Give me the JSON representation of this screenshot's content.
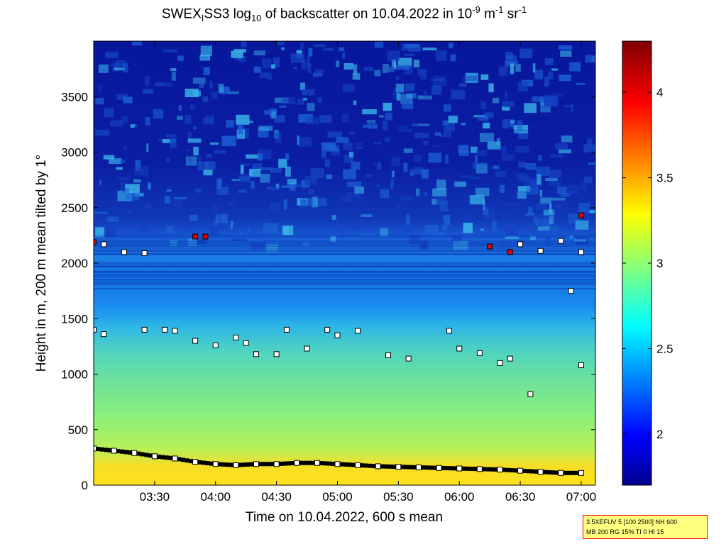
{
  "title": {
    "prefix": "SWEX",
    "sub1": "I",
    "mid": "SS3 log",
    "sub2": "10",
    "after": " of backscatter on 10.04.2022 in 10",
    "sup1": "-9",
    "unit1": " m",
    "sup2": "-1",
    "unit2": " sr",
    "sup3": "-1"
  },
  "info_box": {
    "line1": "3.5XEFUV 5 [100 2500] NH 600",
    "line2": "MB 200 RG 15% TI 0 HI 15"
  },
  "chart_data": {
    "type": "heatmap",
    "title": "SWEX_I SS3 log10 of backscatter on 10.04.2022 in 10^-9 m^-1 sr^-1",
    "xlabel": "Time on 10.04.2022, 600 s mean",
    "ylabel": "Height in m, 200 m mean tilted by 1°",
    "xlim": [
      "03:00",
      "07:07"
    ],
    "ylim": [
      0,
      4000
    ],
    "x_ticks": [
      "03:30",
      "04:00",
      "04:30",
      "05:00",
      "05:30",
      "06:00",
      "06:30",
      "07:00"
    ],
    "y_ticks": [
      0,
      500,
      1000,
      1500,
      2000,
      2500,
      3000,
      3500
    ],
    "colorbar": {
      "colormap": "jet",
      "range": [
        1.7,
        4.3
      ],
      "ticks": [
        2,
        2.5,
        3,
        3.5,
        4
      ]
    },
    "field_description_colors": {
      "high_altitude": "#0a1aa0",
      "boundary_layer_top": "#1e78e6",
      "mid_layer": "#4ad4c8",
      "surface": "#ffd21e"
    },
    "markers_legend": [
      {
        "name": "white squares",
        "color": "#ffffff"
      },
      {
        "name": "black squares",
        "color": "#000000"
      },
      {
        "name": "red squares",
        "color": "#e00000"
      },
      {
        "name": "cyan squares",
        "color": "#40e0f0"
      }
    ],
    "surface_layer_points": [
      {
        "t": "03:00",
        "h": 330
      },
      {
        "t": "03:10",
        "h": 310
      },
      {
        "t": "03:20",
        "h": 290
      },
      {
        "t": "03:30",
        "h": 260
      },
      {
        "t": "03:40",
        "h": 240
      },
      {
        "t": "03:50",
        "h": 210
      },
      {
        "t": "04:00",
        "h": 190
      },
      {
        "t": "04:10",
        "h": 180
      },
      {
        "t": "04:20",
        "h": 190
      },
      {
        "t": "04:30",
        "h": 190
      },
      {
        "t": "04:40",
        "h": 200
      },
      {
        "t": "04:50",
        "h": 200
      },
      {
        "t": "05:00",
        "h": 190
      },
      {
        "t": "05:10",
        "h": 180
      },
      {
        "t": "05:20",
        "h": 170
      },
      {
        "t": "05:30",
        "h": 165
      },
      {
        "t": "05:40",
        "h": 160
      },
      {
        "t": "05:50",
        "h": 155
      },
      {
        "t": "06:00",
        "h": 150
      },
      {
        "t": "06:10",
        "h": 145
      },
      {
        "t": "06:20",
        "h": 140
      },
      {
        "t": "06:30",
        "h": 130
      },
      {
        "t": "06:40",
        "h": 120
      },
      {
        "t": "06:50",
        "h": 110
      },
      {
        "t": "07:00",
        "h": 110
      }
    ],
    "mid_layer_points": [
      {
        "t": "03:00",
        "h": 1400
      },
      {
        "t": "03:05",
        "h": 1360
      },
      {
        "t": "03:25",
        "h": 1400
      },
      {
        "t": "03:35",
        "h": 1400
      },
      {
        "t": "03:40",
        "h": 1390
      },
      {
        "t": "03:50",
        "h": 1300
      },
      {
        "t": "04:00",
        "h": 1260
      },
      {
        "t": "04:10",
        "h": 1330
      },
      {
        "t": "04:15",
        "h": 1280
      },
      {
        "t": "04:20",
        "h": 1180
      },
      {
        "t": "04:30",
        "h": 1180
      },
      {
        "t": "04:35",
        "h": 1400
      },
      {
        "t": "04:45",
        "h": 1230
      },
      {
        "t": "04:55",
        "h": 1400
      },
      {
        "t": "05:00",
        "h": 1350
      },
      {
        "t": "05:10",
        "h": 1390
      },
      {
        "t": "05:25",
        "h": 1170
      },
      {
        "t": "05:35",
        "h": 1140
      },
      {
        "t": "05:55",
        "h": 1390
      },
      {
        "t": "06:00",
        "h": 1230
      },
      {
        "t": "06:10",
        "h": 1190
      },
      {
        "t": "06:20",
        "h": 1100
      },
      {
        "t": "06:25",
        "h": 1140
      },
      {
        "t": "06:35",
        "h": 820
      },
      {
        "t": "06:55",
        "h": 1750
      },
      {
        "t": "07:00",
        "h": 1080
      }
    ],
    "top_layer_points": [
      {
        "t": "03:00",
        "h": 2190,
        "c": "red"
      },
      {
        "t": "03:05",
        "h": 2170
      },
      {
        "t": "03:15",
        "h": 2100
      },
      {
        "t": "03:25",
        "h": 2090
      },
      {
        "t": "03:50",
        "h": 2240,
        "c": "red"
      },
      {
        "t": "03:55",
        "h": 2240,
        "c": "red"
      },
      {
        "t": "06:15",
        "h": 2150,
        "c": "red"
      },
      {
        "t": "06:25",
        "h": 2100,
        "c": "red"
      },
      {
        "t": "06:30",
        "h": 2170
      },
      {
        "t": "06:40",
        "h": 2110
      },
      {
        "t": "06:50",
        "h": 2200
      },
      {
        "t": "07:00",
        "h": 2100
      },
      {
        "t": "07:00",
        "h": 2430,
        "c": "red"
      }
    ]
  }
}
